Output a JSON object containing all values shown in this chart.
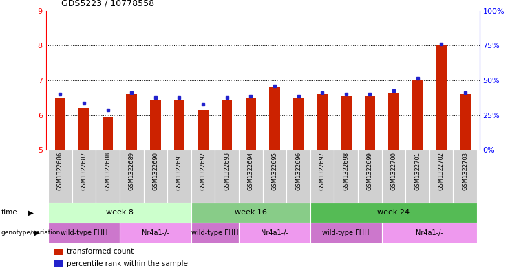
{
  "title": "GDS5223 / 10778558",
  "samples": [
    "GSM1322686",
    "GSM1322687",
    "GSM1322688",
    "GSM1322689",
    "GSM1322690",
    "GSM1322691",
    "GSM1322692",
    "GSM1322693",
    "GSM1322694",
    "GSM1322695",
    "GSM1322696",
    "GSM1322697",
    "GSM1322698",
    "GSM1322699",
    "GSM1322700",
    "GSM1322701",
    "GSM1322702",
    "GSM1322703"
  ],
  "red_values": [
    6.5,
    6.2,
    5.95,
    6.6,
    6.45,
    6.45,
    6.15,
    6.45,
    6.5,
    6.8,
    6.5,
    6.6,
    6.55,
    6.55,
    6.65,
    7.0,
    8.0,
    6.6
  ],
  "blue_values": [
    6.6,
    6.35,
    6.15,
    6.65,
    6.5,
    6.5,
    6.3,
    6.5,
    6.55,
    6.85,
    6.55,
    6.65,
    6.6,
    6.6,
    6.7,
    7.05,
    8.05,
    6.65
  ],
  "ylim": [
    5,
    9
  ],
  "yticks": [
    5,
    6,
    7,
    8,
    9
  ],
  "right_yticks": [
    0,
    25,
    50,
    75,
    100
  ],
  "grid_values": [
    6,
    7,
    8
  ],
  "time_groups": [
    {
      "label": "week 8",
      "start": 0,
      "end": 6,
      "color": "#ccffcc"
    },
    {
      "label": "week 16",
      "start": 6,
      "end": 11,
      "color": "#88cc88"
    },
    {
      "label": "week 24",
      "start": 11,
      "end": 18,
      "color": "#55bb55"
    }
  ],
  "genotype_groups": [
    {
      "label": "wild-type FHH",
      "start": 0,
      "end": 3,
      "color": "#cc77cc"
    },
    {
      "label": "Nr4a1-/-",
      "start": 3,
      "end": 6,
      "color": "#ee99ee"
    },
    {
      "label": "wild-type FHH",
      "start": 6,
      "end": 8,
      "color": "#cc77cc"
    },
    {
      "label": "Nr4a1-/-",
      "start": 8,
      "end": 11,
      "color": "#ee99ee"
    },
    {
      "label": "wild-type FHH",
      "start": 11,
      "end": 14,
      "color": "#cc77cc"
    },
    {
      "label": "Nr4a1-/-",
      "start": 14,
      "end": 18,
      "color": "#ee99ee"
    }
  ],
  "bar_color": "#cc2200",
  "dot_color": "#2222cc",
  "bar_width": 0.45,
  "sample_bg_color": "#d0d0d0",
  "sample_border_color": "#ffffff"
}
